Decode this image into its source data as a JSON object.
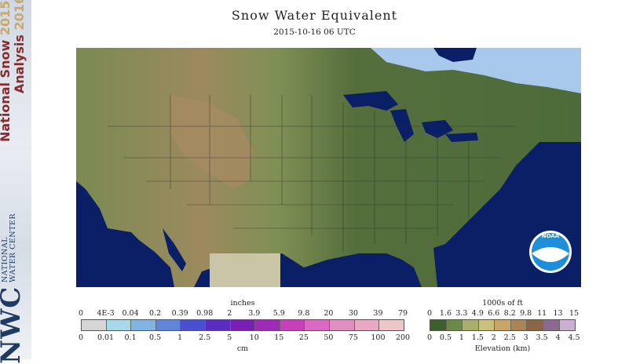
{
  "header": {
    "title": "Snow Water Equivalent",
    "timestamp": "2015-10-16 06 UTC"
  },
  "sidebar": {
    "title_line1": "National Snow",
    "title_line1_year": "2015-",
    "title_line2": "Analysis",
    "title_line2_year": "2016",
    "center_name": "NATIONAL WATER CENTER",
    "logo_text": "NWC"
  },
  "map": {
    "logo_text": "NOAA",
    "colors": {
      "ocean": "#0b1f66",
      "land_low": "#4d6b3a",
      "land_high": "#9c8a5e",
      "snow": "#a8c8ec",
      "mexico_nodata": "#c9c5a6"
    }
  },
  "snow_legend": {
    "units_top": "inches",
    "ticks_top": [
      "0",
      "4E-3",
      "0.04",
      "0.2",
      "0.39",
      "0.98",
      "2",
      "3.9",
      "5.9",
      "9.8",
      "20",
      "30",
      "39",
      "79"
    ],
    "ticks_bottom": [
      "0",
      "0.01",
      "0.1",
      "0.5",
      "1",
      "2.5",
      "5",
      "10",
      "15",
      "25",
      "50",
      "75",
      "100",
      "200"
    ],
    "units_bottom": "cm",
    "colors": [
      "#d6d6d6",
      "#a9d8e8",
      "#7fb5e0",
      "#5f86d9",
      "#4a4fcf",
      "#5a2cc0",
      "#7a1fb5",
      "#a02ab8",
      "#c640b8",
      "#d96ac2",
      "#e090c0",
      "#e7a8c0",
      "#eec6c8"
    ]
  },
  "elevation_legend": {
    "units_top": "1000s of ft",
    "ticks_top": [
      "0",
      "1.6",
      "3.3",
      "4.9",
      "6.6",
      "8.2",
      "9.8",
      "11",
      "13",
      "15"
    ],
    "ticks_bottom": [
      "0",
      "0.5",
      "1",
      "1.5",
      "2",
      "2.5",
      "3",
      "3.5",
      "4",
      "4.5"
    ],
    "units_bottom": "Elevation (km)",
    "colors": [
      "#3f5e2e",
      "#6b8a48",
      "#a6b06a",
      "#cbc17e",
      "#c9a567",
      "#a88456",
      "#8a6647",
      "#8a6a8e",
      "#c8b2cf"
    ]
  }
}
